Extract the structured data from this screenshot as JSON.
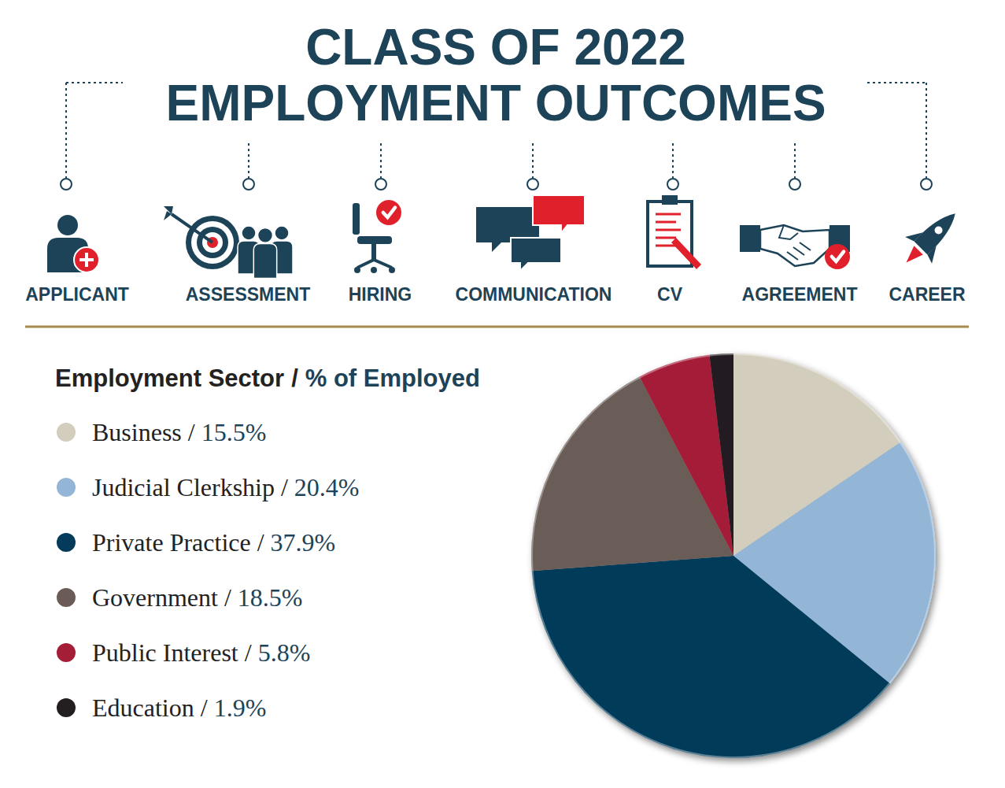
{
  "header": {
    "steps": [
      "APPLICANT",
      "ASSESSMENT",
      "HIRING",
      "COMMUNICATION",
      "CV",
      "AGREEMENT",
      "CAREER"
    ]
  },
  "legend_header": {
    "name": "Employment Sector",
    "value": "% of Employed"
  },
  "separator": "/",
  "chart_data": {
    "type": "pie",
    "title": "CLASS OF 2022 EMPLOYMENT OUTCOMES",
    "categories": [
      "Business",
      "Judicial Clerkship",
      "Private Practice",
      "Government",
      "Public Interest",
      "Education"
    ],
    "values": [
      15.5,
      20.4,
      37.9,
      18.5,
      5.8,
      1.9
    ],
    "value_labels": [
      "15.5%",
      "20.4%",
      "37.9%",
      "18.5%",
      "5.8%",
      "1.9%"
    ],
    "colors": [
      "#d3cdbd",
      "#93b6d7",
      "#043a5a",
      "#6a5b56",
      "#a51e37",
      "#231f20"
    ]
  }
}
